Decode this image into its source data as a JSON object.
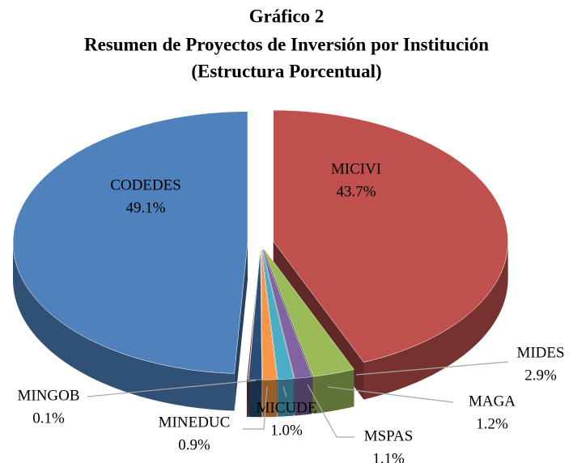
{
  "chart_data": {
    "type": "pie",
    "title": "Gráfico 2",
    "subtitle": [
      "Resumen de Proyectos de Inversión por Institución",
      "(Estructura Porcentual)"
    ],
    "categories": [
      "MICIVI",
      "MIDES",
      "MAGA",
      "MSPAS",
      "MICUDE",
      "MINEDUC",
      "MINGOB",
      "CODEDES"
    ],
    "values": [
      43.7,
      2.9,
      1.2,
      1.1,
      1.0,
      0.9,
      0.1,
      49.1
    ],
    "value_labels": [
      "43.7%",
      "2.9%",
      "1.2%",
      "1.1%",
      "1.0%",
      "0.9%",
      "0.1%",
      "49.1%"
    ],
    "colors": [
      "#c0504d",
      "#9bbb59",
      "#8064a2",
      "#4bacc6",
      "#f79646",
      "#2c4d75",
      "#772c2a",
      "#4f81bd"
    ]
  }
}
